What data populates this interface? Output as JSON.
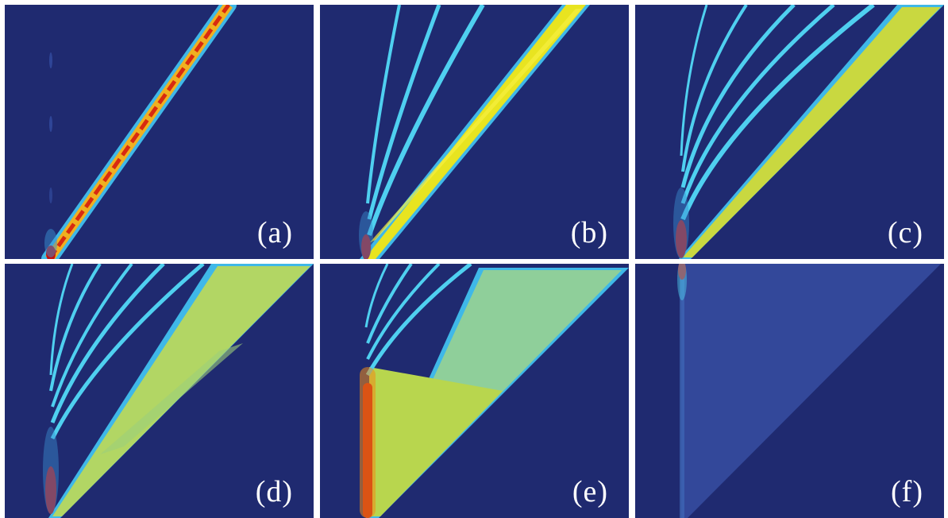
{
  "panels": [
    {
      "id": "a",
      "label": "(a)"
    },
    {
      "id": "b",
      "label": "(b)"
    },
    {
      "id": "c",
      "label": "(c)"
    },
    {
      "id": "d",
      "label": "(d)"
    },
    {
      "id": "e",
      "label": "(e)"
    },
    {
      "id": "f",
      "label": "(f)"
    }
  ],
  "colors": {
    "background": "#1f2a70",
    "cyan": "#4fd0f0",
    "yellow": "#e6e628",
    "yellow_green": "#bfd64a",
    "green": "#9ccf7a",
    "red": "#b81010",
    "orange": "#f08a18",
    "faint_blue": "#33489a"
  }
}
